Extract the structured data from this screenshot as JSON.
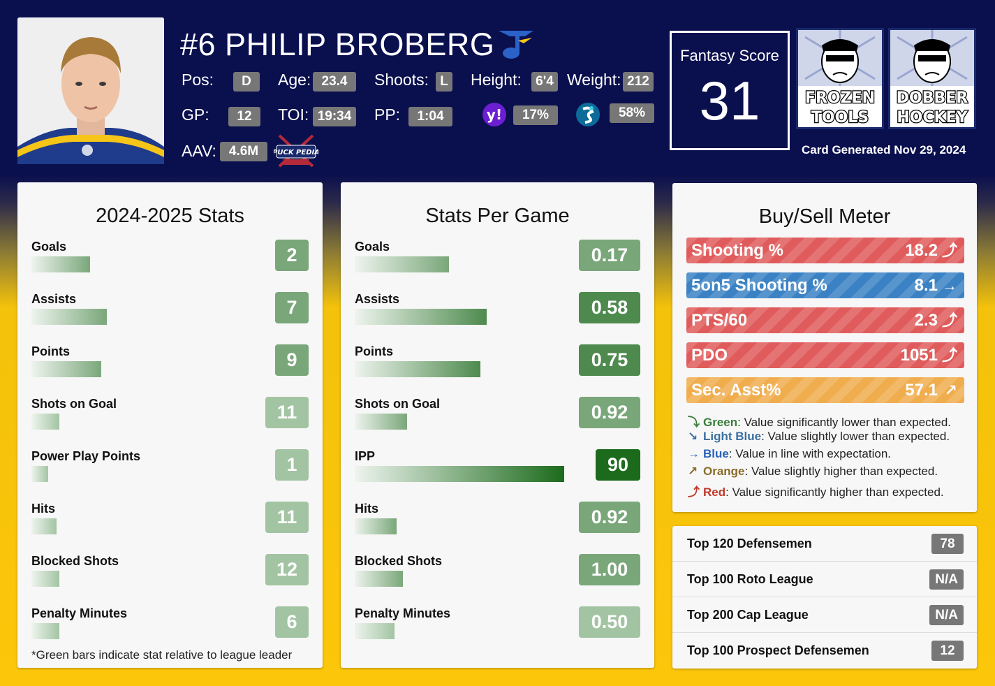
{
  "player": {
    "name": "#6 PHILIP BROBERG",
    "pos_label": "Pos:",
    "pos": "D",
    "age_label": "Age:",
    "age": "23.4",
    "shoots_label": "Shoots:",
    "shoots": "L",
    "height_label": "Height:",
    "height": "6'4",
    "weight_label": "Weight:",
    "weight": "212",
    "gp_label": "GP:",
    "gp": "12",
    "toi_label": "TOI:",
    "toi": "19:34",
    "pp_label": "PP:",
    "pp": "1:04",
    "yahoo_pct": "17%",
    "espn_pct": "58%",
    "aav_label": "AAV:",
    "aav": "4.6M"
  },
  "fantasy": {
    "title": "Fantasy Score",
    "score": "31"
  },
  "brands": {
    "frozen": [
      "FROZEN",
      "TOOLS"
    ],
    "dobber": [
      "DOBBER",
      "HOCKEY"
    ],
    "puckpedia": "PUCK PEDIA"
  },
  "card_generated": "Card Generated Nov 29, 2024",
  "season_stats": {
    "title": "2024-2025 Stats",
    "rows": [
      {
        "name": "Goals",
        "value": "2",
        "rel": 0.21
      },
      {
        "name": "Assists",
        "value": "7",
        "rel": 0.27
      },
      {
        "name": "Points",
        "value": "9",
        "rel": 0.25
      },
      {
        "name": "Shots on Goal",
        "value": "11",
        "rel": 0.1
      },
      {
        "name": "Power Play Points",
        "value": "1",
        "rel": 0.06
      },
      {
        "name": "Hits",
        "value": "11",
        "rel": 0.09
      },
      {
        "name": "Blocked Shots",
        "value": "12",
        "rel": 0.1
      },
      {
        "name": "Penalty Minutes",
        "value": "6",
        "rel": 0.1
      }
    ],
    "footnote": "*Green bars indicate stat relative to league leader"
  },
  "per_game": {
    "title": "Stats Per Game",
    "rows": [
      {
        "name": "Goals",
        "value": "0.17",
        "rel": 0.45
      },
      {
        "name": "Assists",
        "value": "0.58",
        "rel": 0.63
      },
      {
        "name": "Points",
        "value": "0.75",
        "rel": 0.6
      },
      {
        "name": "Shots on Goal",
        "value": "0.92",
        "rel": 0.25
      },
      {
        "name": "IPP",
        "value": "90",
        "rel": 1.0
      },
      {
        "name": "Hits",
        "value": "0.92",
        "rel": 0.2
      },
      {
        "name": "Blocked Shots",
        "value": "1.00",
        "rel": 0.23
      },
      {
        "name": "Penalty Minutes",
        "value": "0.50",
        "rel": 0.19
      }
    ]
  },
  "buy_sell": {
    "title": "Buy/Sell Meter",
    "meters": [
      {
        "name": "Shooting %",
        "value": "18.2",
        "arrow": "⤴",
        "color": "#e05c5c"
      },
      {
        "name": "5on5 Shooting %",
        "value": "8.1",
        "arrow": "→",
        "color": "#3b82c4"
      },
      {
        "name": "PTS/60",
        "value": "2.3",
        "arrow": "⤴",
        "color": "#e05c5c"
      },
      {
        "name": "PDO",
        "value": "1051",
        "arrow": "⤴",
        "color": "#e05c5c"
      },
      {
        "name": "Sec. Asst%",
        "value": "57.1",
        "arrow": "↗",
        "color": "#f0ad4e"
      }
    ],
    "legend": [
      {
        "arrow": "⤵",
        "key": "Green",
        "text": ": Value significantly lower than expected.",
        "color": "#3a7d3a"
      },
      {
        "arrow": "↘",
        "key": "Light Blue",
        "text": ": Value slightly lower than expected.",
        "color": "#3b6fa0"
      },
      {
        "arrow": "→",
        "key": "Blue",
        "text": ": Value in line with expectation.",
        "color": "#2a62b8"
      },
      {
        "arrow": "↗",
        "key": "Orange",
        "text": ": Value slightly higher than expected.",
        "color": "#8b6b2a"
      },
      {
        "arrow": "⤴",
        "key": "Red",
        "text": ": Value significantly higher than expected.",
        "color": "#c0392b"
      }
    ]
  },
  "rankings": [
    {
      "label": "Top 120 Defensemen",
      "value": "78"
    },
    {
      "label": "Top 100 Roto League",
      "value": "N/A"
    },
    {
      "label": "Top 200 Cap League",
      "value": "N/A"
    },
    {
      "label": "Top 100 Prospect Defensemen",
      "value": "12"
    }
  ]
}
